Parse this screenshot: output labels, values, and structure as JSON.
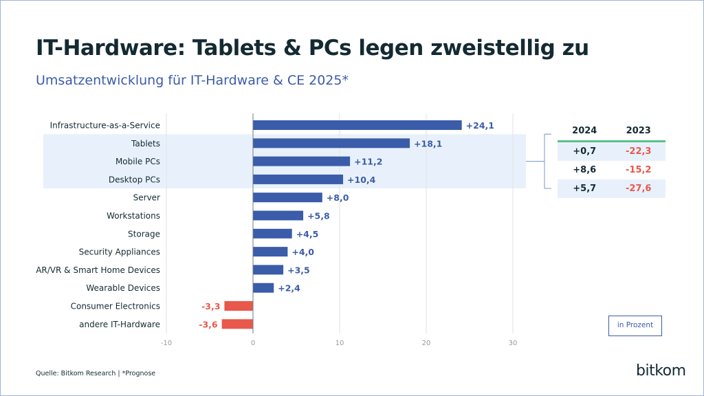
{
  "title": "IT-Hardware: Tablets & PCs legen zweistellig zu",
  "subtitle": "Umsatzentwicklung für IT-Hardware & CE 2025*",
  "source": "Quelle: Bitkom Research | *Prognose",
  "logo": "bitkom",
  "unit_label": "in Prozent",
  "colors": {
    "positive": "#3b5ca8",
    "negative": "#e8584b",
    "highlight": "#e8f1fb",
    "title": "#142a33",
    "table_rule": "#5cbf8a"
  },
  "side_table": {
    "headers": [
      "2024",
      "2023"
    ],
    "rows": [
      {
        "label_ref": "Tablets",
        "v2024": "+0,7",
        "v2023": "-22,3"
      },
      {
        "label_ref": "Mobile PCs",
        "v2024": "+8,6",
        "v2023": "-15,2"
      },
      {
        "label_ref": "Desktop PCs",
        "v2024": "+5,7",
        "v2023": "-27,6"
      }
    ]
  },
  "chart_data": {
    "type": "bar",
    "orientation": "horizontal",
    "categories": [
      "Infrastructure-as-a-Service",
      "Tablets",
      "Mobile PCs",
      "Desktop PCs",
      "Server",
      "Workstations",
      "Storage",
      "Security Appliances",
      "AR/VR & Smart Home Devices",
      "Wearable Devices",
      "Consumer Electronics",
      "andere IT-Hardware"
    ],
    "values": [
      24.1,
      18.1,
      11.2,
      10.4,
      8.0,
      5.8,
      4.5,
      4.0,
      3.5,
      2.4,
      -3.3,
      -3.6
    ],
    "data_labels": [
      "+24,1",
      "+18,1",
      "+11,2",
      "+10,4",
      "+8,0",
      "+5,8",
      "+4,5",
      "+4,0",
      "+3,5",
      "+2,4",
      "-3,3",
      "-3,6"
    ],
    "highlighted_categories": [
      "Tablets",
      "Mobile PCs",
      "Desktop PCs"
    ],
    "xlim": [
      -10,
      30
    ],
    "xticks": [
      "-10",
      "0",
      "10",
      "20",
      "30"
    ],
    "grid": "vertical",
    "title": "",
    "xlabel": "",
    "ylabel": ""
  }
}
